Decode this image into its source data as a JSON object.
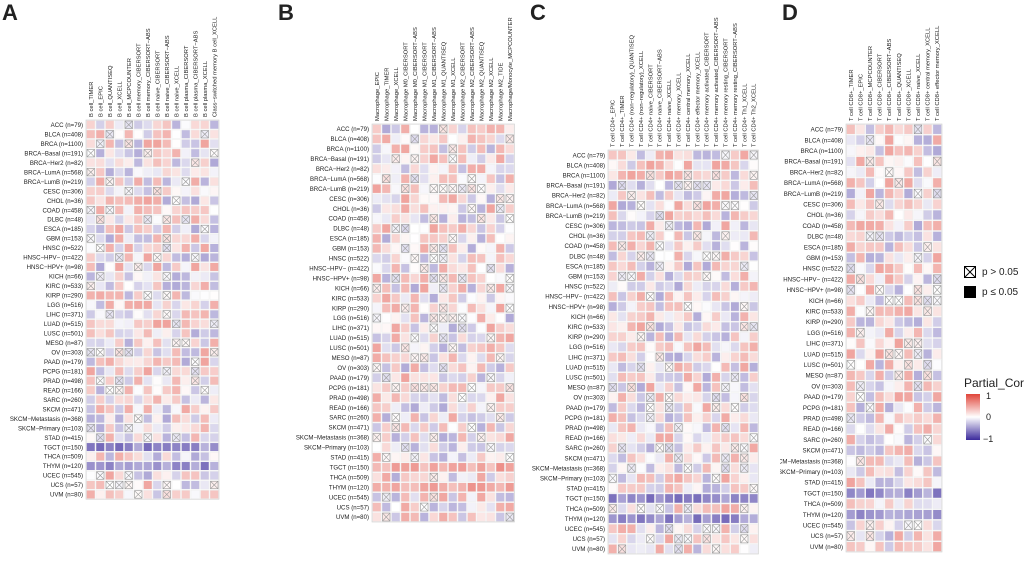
{
  "legend": {
    "ns_label": "p > 0.05",
    "sig_label": "p ≤ 0.05",
    "colorbar_title": "Partial_Cor",
    "tick_top": "1",
    "tick_mid": "0",
    "tick_bottom": "−1",
    "low_color": "#3b2a9c",
    "mid_color": "#ffffff",
    "high_color": "#e0453a"
  },
  "chart_data": [
    {
      "type": "heatmap",
      "panel": "A",
      "rows": [
        "ACC (n=79)",
        "BLCA (n=408)",
        "BRCA (n=1100)",
        "BRCA−Basal (n=191)",
        "BRCA−Her2 (n=82)",
        "BRCA−LumA (n=568)",
        "BRCA−LumB (n=219)",
        "CESC (n=306)",
        "CHOL (n=36)",
        "COAD (n=458)",
        "DLBC (n=48)",
        "ESCA (n=185)",
        "GBM (n=153)",
        "HNSC (n=522)",
        "HNSC−HPV− (n=422)",
        "HNSC−HPV+ (n=98)",
        "KICH (n=66)",
        "KIRC (n=533)",
        "KIRP (n=290)",
        "LGG (n=516)",
        "LIHC (n=371)",
        "LUAD (n=515)",
        "LUSC (n=501)",
        "MESO (n=87)",
        "OV (n=303)",
        "PAAD (n=179)",
        "PCPG (n=181)",
        "PRAD (n=498)",
        "READ (n=166)",
        "SARC (n=260)",
        "SKCM (n=471)",
        "SKCM−Metastasis (n=368)",
        "SKCM−Primary (n=103)",
        "STAD (n=415)",
        "TGCT (n=150)",
        "THCA (n=509)",
        "THYM (n=120)",
        "UCEC (n=545)",
        "UCS (n=57)",
        "UVM (n=80)"
      ],
      "columns": [
        "B cell_TIMER",
        "B cell_EPIC",
        "B cell_QUANTISEQ",
        "B cell_XCELL",
        "B cell_MCPCOUNTER",
        "B cell memory_CIBERSORT",
        "B cell memory_CIBERSORT−ABS",
        "B cell naive_CIBERSORT",
        "B cell naive_CIBERSORT−ABS",
        "B cell naive_XCELL",
        "B cell plasma_CIBERSORT",
        "B cell plasma_CIBERSORT−ABS",
        "B cell plasma_XCELL",
        "Class−switched memory B cell_XCELL"
      ]
    },
    {
      "type": "heatmap",
      "panel": "B",
      "rows": [
        "ACC (n=79)",
        "BLCA (n=408)",
        "BRCA (n=1100)",
        "BRCA−Basal (n=191)",
        "BRCA−Her2 (n=82)",
        "BRCA−LumA (n=568)",
        "BRCA−LumB (n=219)",
        "CESC (n=306)",
        "CHOL (n=36)",
        "COAD (n=458)",
        "DLBC (n=48)",
        "ESCA (n=185)",
        "GBM (n=153)",
        "HNSC (n=522)",
        "HNSC−HPV− (n=422)",
        "HNSC−HPV+ (n=98)",
        "KICH (n=66)",
        "KIRC (n=533)",
        "KIRP (n=290)",
        "LGG (n=516)",
        "LIHC (n=371)",
        "LUAD (n=515)",
        "LUSC (n=501)",
        "MESO (n=87)",
        "OV (n=303)",
        "PAAD (n=179)",
        "PCPG (n=181)",
        "PRAD (n=498)",
        "READ (n=166)",
        "SARC (n=260)",
        "SKCM (n=471)",
        "SKCM−Metastasis (n=368)",
        "SKCM−Primary (n=103)",
        "STAD (n=415)",
        "TGCT (n=150)",
        "THCA (n=509)",
        "THYM (n=120)",
        "UCEC (n=545)",
        "UCS (n=57)",
        "UVM (n=80)"
      ],
      "columns": [
        "Macrophage_EPIC",
        "Macrophage_TIMER",
        "Macrophage_XCELL",
        "Macrophage M0_CIBERSORT",
        "Macrophage M0_CIBERSORT−ABS",
        "Macrophage M1_CIBERSORT",
        "Macrophage M1_CIBERSORT−ABS",
        "Macrophage M1_QUANTISEQ",
        "Macrophage M1_XCELL",
        "Macrophage M2_CIBERSORT",
        "Macrophage M2_CIBERSORT−ABS",
        "Macrophage M2_QUANTISEQ",
        "Macrophage M2_XCELL",
        "Macrophage M2_TIDE",
        "Macrophage/Monocyte_MCPCOUNTER"
      ]
    },
    {
      "type": "heatmap",
      "panel": "C",
      "rows": [
        "ACC (n=79)",
        "BLCA (n=408)",
        "BRCA (n=1100)",
        "BRCA−Basal (n=191)",
        "BRCA−Her2 (n=82)",
        "BRCA−LumA (n=568)",
        "BRCA−LumB (n=219)",
        "CESC (n=306)",
        "CHOL (n=36)",
        "COAD (n=458)",
        "DLBC (n=48)",
        "ESCA (n=185)",
        "GBM (n=153)",
        "HNSC (n=522)",
        "HNSC−HPV− (n=422)",
        "HNSC−HPV+ (n=98)",
        "KICH (n=66)",
        "KIRC (n=533)",
        "KIRP (n=290)",
        "LGG (n=516)",
        "LIHC (n=371)",
        "LUAD (n=515)",
        "LUSC (n=501)",
        "MESO (n=87)",
        "OV (n=303)",
        "PAAD (n=179)",
        "PCPG (n=181)",
        "PRAD (n=498)",
        "READ (n=166)",
        "SARC (n=260)",
        "SKCM (n=471)",
        "SKCM−Metastasis (n=368)",
        "SKCM−Primary (n=103)",
        "STAD (n=415)",
        "TGCT (n=150)",
        "THCA (n=509)",
        "THYM (n=120)",
        "UCEC (n=545)",
        "UCS (n=57)",
        "UVM (n=80)"
      ],
      "columns": [
        "T cell CD4+_EPIC",
        "T cell CD4+_TIMER",
        "T cell CD4+ (non−regulatory)_QUANTISEQ",
        "T cell CD4+ (non−regulatory)_XCELL",
        "T cell CD4+ naive_CIBERSORT",
        "T cell CD4+ naive_CIBERSORT−ABS",
        "T cell CD4+ naive_XCELL",
        "T cell CD4+ memory_XCELL",
        "T cell CD4+ central memory_XCELL",
        "T cell CD4+ effector memory_XCELL",
        "T cell CD4+ memory activated_CIBERSORT",
        "T cell CD4+ memory activated_CIBERSORT−ABS",
        "T cell CD4+ memory resting_CIBERSORT",
        "T cell CD4+ memory resting_CIBERSORT−ABS",
        "T cell CD4+ Th1_XCELL",
        "T cell CD4+ Th2_XCELL"
      ]
    },
    {
      "type": "heatmap",
      "panel": "D",
      "rows": [
        "ACC (n=79)",
        "BLCA (n=408)",
        "BRCA (n=1100)",
        "BRCA−Basal (n=191)",
        "BRCA−Her2 (n=82)",
        "BRCA−LumA (n=568)",
        "BRCA−LumB (n=219)",
        "CESC (n=306)",
        "CHOL (n=36)",
        "COAD (n=458)",
        "DLBC (n=48)",
        "ESCA (n=185)",
        "GBM (n=153)",
        "HNSC (n=522)",
        "HNSC−HPV− (n=422)",
        "HNSC−HPV+ (n=98)",
        "KICH (n=66)",
        "KIRC (n=533)",
        "KIRP (n=290)",
        "LGG (n=516)",
        "LIHC (n=371)",
        "LUAD (n=515)",
        "LUSC (n=501)",
        "MESO (n=87)",
        "OV (n=303)",
        "PAAD (n=179)",
        "PCPG (n=181)",
        "PRAD (n=498)",
        "READ (n=166)",
        "SARC (n=260)",
        "SKCM (n=471)",
        "SKCM−Metastasis (n=368)",
        "SKCM−Primary (n=103)",
        "STAD (n=415)",
        "TGCT (n=150)",
        "THCA (n=509)",
        "THYM (n=120)",
        "UCEC (n=545)",
        "UCS (n=57)",
        "UVM (n=80)"
      ],
      "columns": [
        "T cell CD8+_TIMER",
        "T cell CD8+_EPIC",
        "T cell CD8+_MCPCOUNTER",
        "T cell CD8+_CIBERSORT",
        "T cell CD8+_CIBERSORT−ABS",
        "T cell CD8+_QUANTISEQ",
        "T cell CD8+_XCELL",
        "T cell CD8+ naive_XCELL",
        "T cell CD8+ central memory_XCELL",
        "T cell CD8+ effector memory_XCELL"
      ]
    }
  ]
}
